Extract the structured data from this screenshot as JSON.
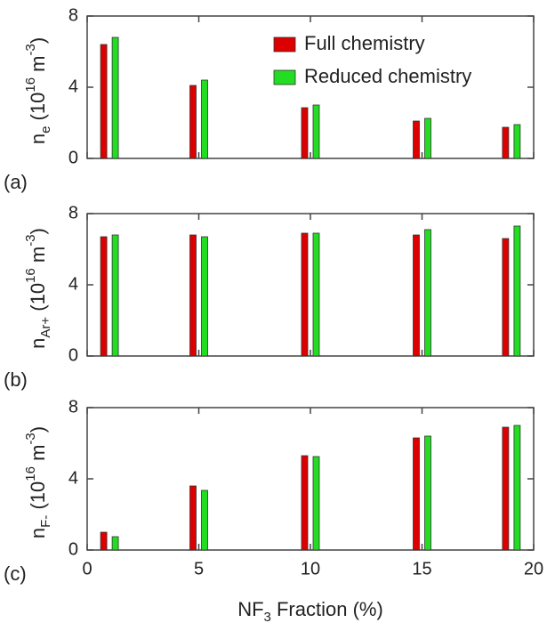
{
  "chart_data": [
    {
      "type": "bar",
      "panel_label": "(a)",
      "ylabel": [
        "n",
        "e",
        " (10",
        "16",
        " m",
        "-3",
        ")"
      ],
      "x": [
        1,
        5,
        10,
        15,
        19
      ],
      "xlim": [
        0,
        20
      ],
      "xticks": [
        0,
        5,
        10,
        15,
        20
      ],
      "ylim": [
        0,
        8
      ],
      "yticks": [
        0,
        4,
        8
      ],
      "legend": "upper right",
      "series": [
        {
          "name": "Full chemistry",
          "color": "#dd0000",
          "values": [
            6.4,
            4.1,
            2.85,
            2.1,
            1.75
          ]
        },
        {
          "name": "Reduced chemistry",
          "color": "#22dd22",
          "values": [
            6.8,
            4.4,
            3.0,
            2.25,
            1.9
          ]
        }
      ]
    },
    {
      "type": "bar",
      "panel_label": "(b)",
      "ylabel": [
        "n",
        "Ar+",
        " (10",
        "16",
        " m",
        "-3",
        ")"
      ],
      "x": [
        1,
        5,
        10,
        15,
        19
      ],
      "xlim": [
        0,
        20
      ],
      "xticks": [
        0,
        5,
        10,
        15,
        20
      ],
      "ylim": [
        0,
        8
      ],
      "yticks": [
        0,
        4,
        8
      ],
      "series": [
        {
          "color": "#dd0000",
          "values": [
            6.7,
            6.8,
            6.9,
            6.8,
            6.6
          ]
        },
        {
          "color": "#22dd22",
          "values": [
            6.8,
            6.7,
            6.9,
            7.1,
            7.3
          ]
        }
      ]
    },
    {
      "type": "bar",
      "panel_label": "(c)",
      "ylabel": [
        "n",
        "F-",
        " (10",
        "16",
        " m",
        "-3",
        ")"
      ],
      "xlabel": [
        "NF",
        "3",
        " Fraction (%)"
      ],
      "x": [
        1,
        5,
        10,
        15,
        19
      ],
      "xlim": [
        0,
        20
      ],
      "xticks": [
        0,
        5,
        10,
        15,
        20
      ],
      "ylim": [
        0,
        8
      ],
      "yticks": [
        0,
        4,
        8
      ],
      "series": [
        {
          "color": "#dd0000",
          "values": [
            1.0,
            3.6,
            5.3,
            6.3,
            6.9
          ]
        },
        {
          "color": "#22dd22",
          "values": [
            0.75,
            3.35,
            5.25,
            6.4,
            7.0
          ]
        }
      ]
    }
  ]
}
